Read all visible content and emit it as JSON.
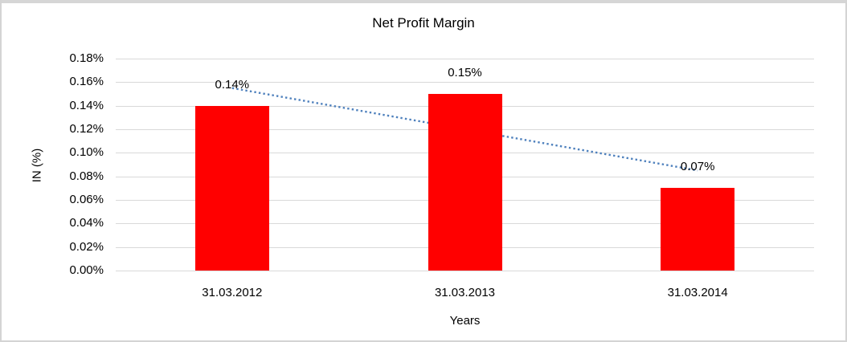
{
  "window": {
    "background": "#FFFFFF",
    "border_top_color": "#D6D6D6",
    "border_side_color": "#D4D4D4"
  },
  "chart_data": {
    "type": "bar",
    "title": "Net Profit Margin",
    "xlabel": "Years",
    "ylabel": "IN (%)",
    "categories": [
      "31.03.2012",
      "31.03.2013",
      "31.03.2014"
    ],
    "values": [
      0.14,
      0.15,
      0.07
    ],
    "data_labels": [
      "0.14%",
      "0.15%",
      "0.07%"
    ],
    "y_ticks": [
      "0.18%",
      "0.16%",
      "0.14%",
      "0.12%",
      "0.10%",
      "0.08%",
      "0.06%",
      "0.04%",
      "0.02%",
      "0.00%"
    ],
    "ylim": [
      0,
      0.18
    ],
    "y_tick_step": 0.02,
    "grid": true,
    "legend": "none",
    "bar_color": "#FF0000",
    "gridline_color": "#D9D9D9",
    "text_color": "#000000",
    "trendline": {
      "type": "linear",
      "style": "dotted",
      "color": "#4F81BD",
      "start_value": 0.155,
      "end_value": 0.085
    }
  }
}
